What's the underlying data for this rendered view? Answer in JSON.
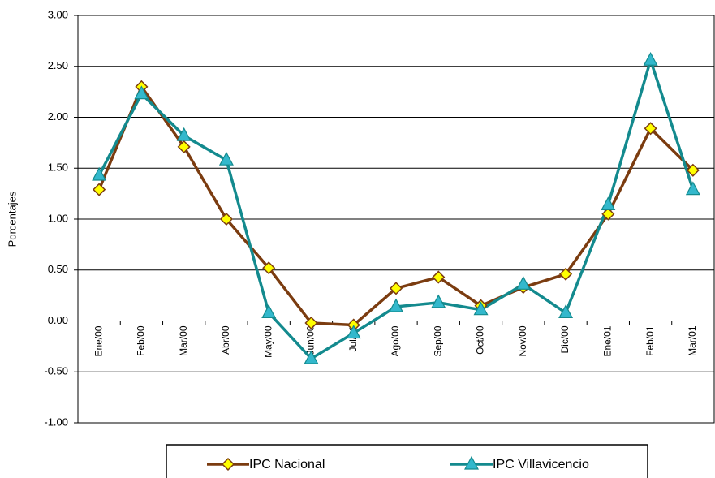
{
  "chart_data": {
    "type": "line",
    "y_label": "Porcentajes",
    "categories": [
      "Ene/00",
      "Feb/00",
      "Mar/00",
      "Abr/00",
      "May/00",
      "Jun/00",
      "Jul/00",
      "Ago/00",
      "Sep/00",
      "Oct/00",
      "Nov/00",
      "Dic/00",
      "Ene/01",
      "Feb/01",
      "Mar/01"
    ],
    "series": [
      {
        "name": "IPC Nacional",
        "color": "#7b3c10",
        "marker": "diamond",
        "marker_color": "#ffff00",
        "values": [
          1.29,
          2.3,
          1.71,
          1.0,
          0.52,
          -0.02,
          -0.04,
          0.32,
          0.43,
          0.15,
          0.33,
          0.46,
          1.05,
          1.89,
          1.48
        ]
      },
      {
        "name": "IPC Villavicencio",
        "color": "#138a8e",
        "marker": "triangle",
        "marker_color": "#33b8cc",
        "values": [
          1.43,
          2.23,
          1.82,
          1.58,
          0.08,
          -0.37,
          -0.12,
          0.14,
          0.18,
          0.11,
          0.36,
          0.08,
          1.14,
          2.56,
          1.29
        ]
      }
    ],
    "ylim": [
      -1,
      3
    ],
    "yticks": [
      {
        "value": -1,
        "label": "-1.00"
      },
      {
        "value": -0.5,
        "label": "-0.50"
      },
      {
        "value": 0,
        "label": "0.00"
      },
      {
        "value": 0.5,
        "label": "0.50"
      },
      {
        "value": 1,
        "label": "1.00"
      },
      {
        "value": 1.5,
        "label": "1.50"
      },
      {
        "value": 2,
        "label": "2.00"
      },
      {
        "value": 2.5,
        "label": "2.50"
      },
      {
        "value": 3,
        "label": "3.00"
      }
    ],
    "grid": true,
    "legend": "bottom"
  }
}
